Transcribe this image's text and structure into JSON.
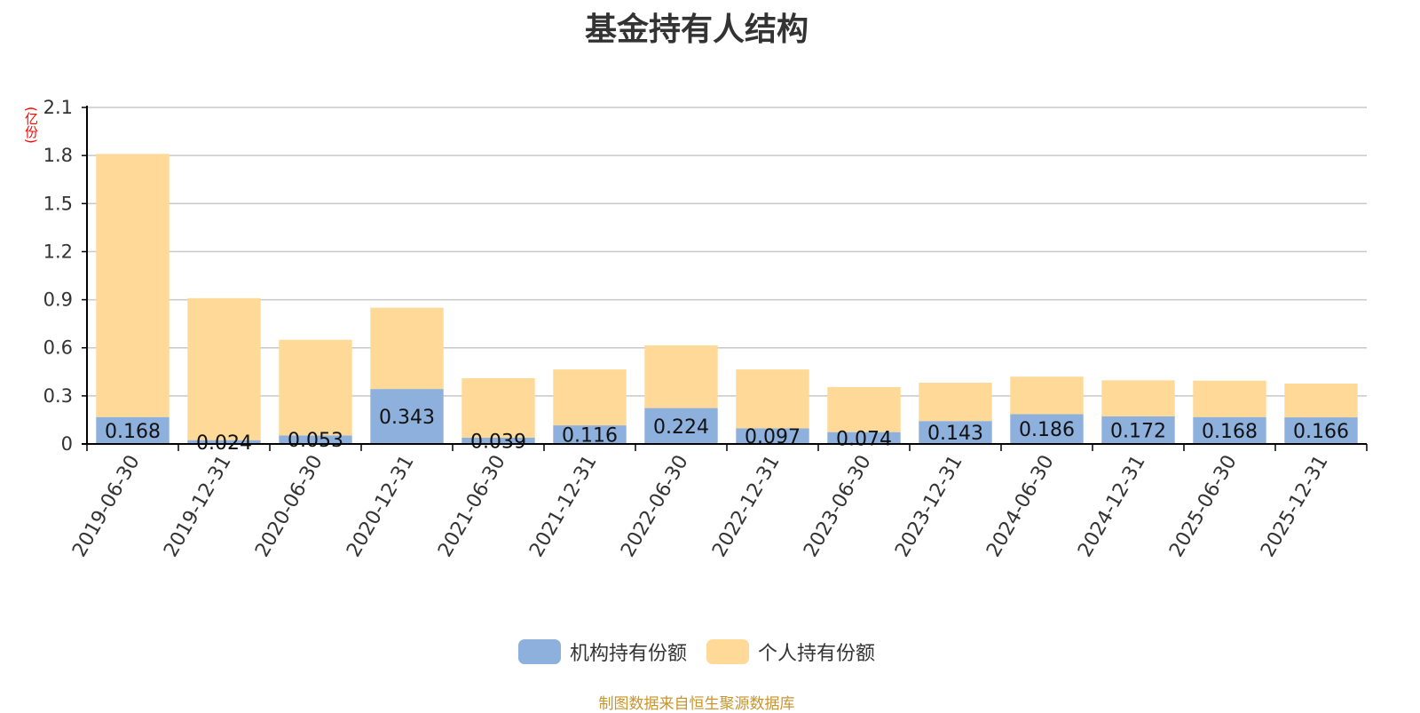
{
  "colors": {
    "institutional": "#8eb0dd",
    "individual": "#fed997",
    "axis": "#000000",
    "grid": "#c8c8c8",
    "unit": "#ff0000",
    "source": "#c8942c"
  },
  "chart_data": {
    "type": "bar",
    "stacked": true,
    "title": "基金持有人结构",
    "y_unit": "(亿份)",
    "ylim": [
      0,
      2.1
    ],
    "yticks": [
      "0",
      "0.3",
      "0.6",
      "0.9",
      "1.2",
      "1.5",
      "1.8",
      "2.1"
    ],
    "grid": true,
    "legend_position": "bottom",
    "categories": [
      "2019-06-30",
      "2019-12-31",
      "2020-06-30",
      "2020-12-31",
      "2021-06-30",
      "2021-12-31",
      "2022-06-30",
      "2022-12-31",
      "2023-06-30",
      "2023-12-31",
      "2024-06-30",
      "2024-12-31",
      "2025-06-30",
      "2025-12-31"
    ],
    "series": [
      {
        "name": "机构持有份额",
        "values": [
          0.168,
          0.024,
          0.053,
          0.343,
          0.039,
          0.116,
          0.224,
          0.097,
          0.074,
          0.143,
          0.186,
          0.172,
          0.168,
          0.166
        ],
        "labels": [
          "0.168",
          "0.024",
          "0.053",
          "0.343",
          "0.039",
          "0.116",
          "0.224",
          "0.097",
          "0.074",
          "0.143",
          "0.186",
          "0.172",
          "0.168",
          "0.166"
        ]
      },
      {
        "name": "个人持有份额",
        "values": [
          1.642,
          0.886,
          0.597,
          0.507,
          0.371,
          0.349,
          0.391,
          0.368,
          0.281,
          0.239,
          0.234,
          0.225,
          0.227,
          0.211
        ]
      }
    ]
  },
  "source": "制图数据来自恒生聚源数据库"
}
